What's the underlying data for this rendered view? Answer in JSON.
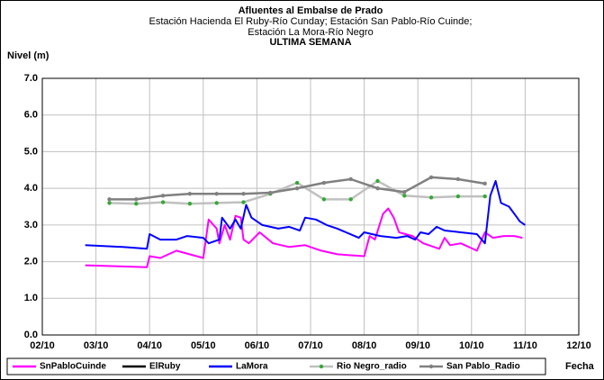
{
  "chart_data": {
    "type": "line",
    "title": "Afluentes al Embalse de Prado",
    "subtitle": [
      "Estación Hacienda El Ruby-Río Cunday; Estación San Pablo-Río Cuinde;",
      "Estación La Mora-Río Negro"
    ],
    "period": "ULTIMA SEMANA",
    "y_label": "Nivel (m)",
    "x_label": "Fecha",
    "xlim": [
      2,
      12
    ],
    "ylim": [
      0,
      7
    ],
    "xticks": [
      {
        "value": 2,
        "label": "02/10"
      },
      {
        "value": 3,
        "label": "03/10"
      },
      {
        "value": 4,
        "label": "04/10"
      },
      {
        "value": 5,
        "label": "05/10"
      },
      {
        "value": 6,
        "label": "06/10"
      },
      {
        "value": 7,
        "label": "07/10"
      },
      {
        "value": 8,
        "label": "08/10"
      },
      {
        "value": 9,
        "label": "09/10"
      },
      {
        "value": 10,
        "label": "10/10"
      },
      {
        "value": 11,
        "label": "11/10"
      },
      {
        "value": 12,
        "label": "12/10"
      }
    ],
    "yticks": [
      {
        "value": 0,
        "label": "0.0"
      },
      {
        "value": 1,
        "label": "1.0"
      },
      {
        "value": 2,
        "label": "2.0"
      },
      {
        "value": 3,
        "label": "3.0"
      },
      {
        "value": 4,
        "label": "4.0"
      },
      {
        "value": 5,
        "label": "5.0"
      },
      {
        "value": 6,
        "label": "6.0"
      },
      {
        "value": 7,
        "label": "7.0"
      }
    ],
    "grid": true,
    "series": [
      {
        "name": "SnPabloCuinde",
        "color": "#ff00ff",
        "x": [
          2.8,
          3.5,
          3.95,
          4.0,
          4.2,
          4.5,
          5.0,
          5.1,
          5.25,
          5.3,
          5.4,
          5.5,
          5.6,
          5.7,
          5.75,
          5.85,
          6.05,
          6.3,
          6.6,
          6.9,
          7.2,
          7.5,
          8.0,
          8.1,
          8.2,
          8.35,
          8.45,
          8.55,
          8.65,
          8.9,
          9.1,
          9.4,
          9.5,
          9.6,
          9.8,
          10.1,
          10.25,
          10.4,
          10.6,
          10.8,
          10.95
        ],
        "values": [
          1.9,
          1.87,
          1.85,
          2.15,
          2.1,
          2.3,
          2.1,
          3.15,
          2.9,
          2.5,
          3.0,
          2.6,
          3.25,
          3.2,
          2.6,
          2.5,
          2.8,
          2.5,
          2.4,
          2.45,
          2.3,
          2.2,
          2.15,
          2.7,
          2.6,
          3.3,
          3.45,
          3.2,
          2.8,
          2.7,
          2.5,
          2.35,
          2.65,
          2.45,
          2.5,
          2.3,
          2.8,
          2.65,
          2.7,
          2.7,
          2.65
        ]
      },
      {
        "name": "ElRuby",
        "color": "#000000",
        "x": [],
        "values": []
      },
      {
        "name": "LaMora",
        "color": "#0000ff",
        "x": [
          2.8,
          3.5,
          3.95,
          4.0,
          4.2,
          4.5,
          4.7,
          5.0,
          5.1,
          5.3,
          5.35,
          5.5,
          5.6,
          5.7,
          5.8,
          5.9,
          6.1,
          6.4,
          6.6,
          6.8,
          6.9,
          7.1,
          7.3,
          7.5,
          7.9,
          8.0,
          8.3,
          8.6,
          8.8,
          8.95,
          9.05,
          9.2,
          9.35,
          9.5,
          9.8,
          10.1,
          10.25,
          10.35,
          10.45,
          10.55,
          10.7,
          10.85,
          10.9,
          11.0
        ],
        "values": [
          2.45,
          2.4,
          2.35,
          2.75,
          2.6,
          2.6,
          2.7,
          2.65,
          2.5,
          2.6,
          3.2,
          2.9,
          3.15,
          2.9,
          3.55,
          3.2,
          3.0,
          2.9,
          2.95,
          2.85,
          3.2,
          3.15,
          3.0,
          2.9,
          2.65,
          2.8,
          2.7,
          2.65,
          2.7,
          2.6,
          2.8,
          2.75,
          2.95,
          2.85,
          2.8,
          2.75,
          2.5,
          3.8,
          4.2,
          3.6,
          3.5,
          3.2,
          3.1,
          3.0
        ]
      },
      {
        "name": "Rio Negro_radio",
        "color": "#c0c0c0",
        "marker_color": "#33aa33",
        "markers": true,
        "x": [
          3.25,
          3.75,
          4.25,
          4.75,
          5.25,
          5.75,
          6.25,
          6.75,
          7.25,
          7.75,
          8.25,
          8.75,
          9.25,
          9.75,
          10.25
        ],
        "values": [
          3.6,
          3.58,
          3.62,
          3.58,
          3.6,
          3.62,
          3.85,
          4.15,
          3.7,
          3.7,
          4.2,
          3.8,
          3.75,
          3.78,
          3.78
        ]
      },
      {
        "name": "San Pablo_Radio",
        "color": "#808080",
        "marker_color": "#808080",
        "markers": true,
        "x": [
          3.25,
          3.75,
          4.25,
          4.75,
          5.25,
          5.75,
          6.25,
          6.75,
          7.25,
          7.75,
          8.25,
          8.75,
          9.25,
          9.75,
          10.25
        ],
        "values": [
          3.7,
          3.7,
          3.8,
          3.85,
          3.85,
          3.85,
          3.88,
          4.0,
          4.15,
          4.25,
          4.0,
          3.9,
          4.3,
          4.25,
          4.13
        ]
      }
    ]
  }
}
